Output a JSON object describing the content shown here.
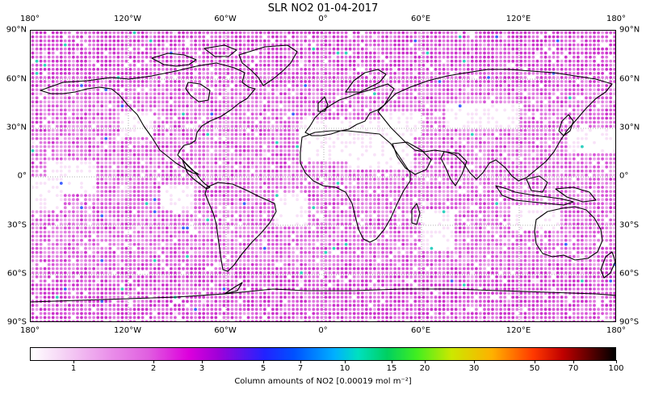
{
  "title": "SLR NO2 01-04-2017",
  "map": {
    "projection": "plate carree",
    "lon_range": [
      -180,
      180
    ],
    "lat_range": [
      -90,
      90
    ],
    "grid_step_deg": 2.5,
    "gridlines": "dotted, every 60° lon / 30° lat",
    "dot_color_low": "#f4c8f4",
    "dot_color_mid": "#d850d8",
    "land_outline_color": "#000000",
    "x_ticks": [
      "180°",
      "120°W",
      "60°W",
      "0°",
      "60°E",
      "120°E",
      "180°"
    ],
    "y_ticks": [
      "90°N",
      "60°N",
      "30°N",
      "0°",
      "30°S",
      "60°S",
      "90°S"
    ]
  },
  "colorbar": {
    "ticks": [
      "1",
      "2",
      "3",
      "5",
      "7",
      "10",
      "15",
      "20",
      "30",
      "50",
      "70",
      "100"
    ],
    "label": "Column amounts of NO2 [0.00019 mol m⁻²]",
    "scale": "log-like (roughly 0.6 → 100)",
    "colors": [
      "#ffffff",
      "#e98ce9",
      "#dd00dd",
      "#2222ff",
      "#00b0ff",
      "#00d060",
      "#cce800",
      "#ffb000",
      "#ff3800",
      "#c00000",
      "#000000"
    ]
  }
}
